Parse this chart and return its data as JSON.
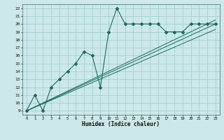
{
  "xlabel": "Humidex (Indice chaleur)",
  "bg_color": "#cce8e8",
  "grid_color": "#99cccc",
  "line_color": "#1a6b5e",
  "xlim": [
    -0.5,
    23.5
  ],
  "ylim": [
    8.5,
    22.5
  ],
  "xticks": [
    0,
    1,
    2,
    3,
    4,
    5,
    6,
    7,
    8,
    9,
    10,
    11,
    12,
    13,
    14,
    15,
    16,
    17,
    18,
    19,
    20,
    21,
    22,
    23
  ],
  "yticks": [
    9,
    10,
    11,
    12,
    13,
    14,
    15,
    16,
    17,
    18,
    19,
    20,
    21,
    22
  ],
  "main_x": [
    0,
    1,
    2,
    3,
    4,
    5,
    6,
    7,
    8,
    9,
    10,
    11,
    12,
    13,
    14,
    15,
    16,
    17,
    18,
    19,
    20,
    21,
    22,
    23
  ],
  "main_y": [
    9,
    11,
    9,
    12,
    13,
    14,
    15,
    16.5,
    16,
    12,
    19,
    22,
    20,
    20,
    20,
    20,
    20,
    19,
    19,
    19,
    20,
    20,
    20,
    20
  ],
  "line1_x": [
    0,
    23
  ],
  "line1_y": [
    9,
    20.0
  ],
  "line2_x": [
    0,
    23
  ],
  "line2_y": [
    9,
    19.3
  ],
  "line3_x": [
    0,
    23
  ],
  "line3_y": [
    9,
    20.5
  ]
}
